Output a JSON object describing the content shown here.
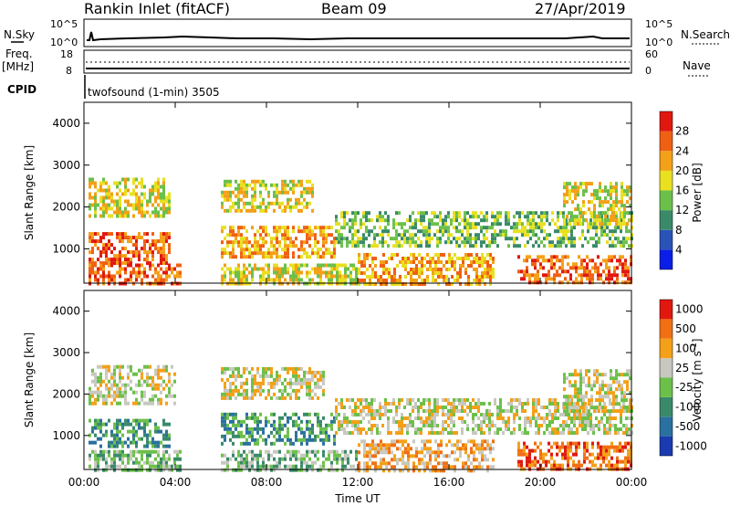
{
  "header": {
    "title": "Rankin Inlet (fitACF)",
    "beam": "Beam 09",
    "date": "27/Apr/2019"
  },
  "status_panels": {
    "nsky_label": "N.Sky",
    "nsearch_label": "N.Search",
    "nsky_ticks": [
      "10^5",
      "10^0"
    ],
    "nsearch_ticks": [
      "10^5",
      "10^0"
    ],
    "freq_label_top": "Freq.",
    "freq_label_unit": "[MHz]",
    "freq_ticks": [
      "18",
      "8"
    ],
    "nave_label": "Nave",
    "nave_ticks": [
      "60",
      "0"
    ],
    "cpid_label": "CPID",
    "cpid_text": "twofsound (1-min) 3505"
  },
  "chart_data": [
    {
      "type": "heatmap",
      "name": "power-panel",
      "ylabel": "Slant Range [km]",
      "ylim": [
        180,
        4500
      ],
      "yticks": [
        "1000",
        "2000",
        "3000",
        "4000"
      ],
      "xlim_hours": [
        0,
        24
      ],
      "colorbar": {
        "label": "Power [dB]",
        "ticks": [
          "4",
          "8",
          "12",
          "16",
          "20",
          "24",
          "28"
        ],
        "colors": [
          "#0a1ee6",
          "#2a53b8",
          "#3a8a6a",
          "#6cc04a",
          "#e8e020",
          "#f4a018",
          "#f06012",
          "#e01810"
        ]
      },
      "regions": [
        {
          "t0": 0.2,
          "t1": 3.8,
          "r0": 1800,
          "r1": 2700,
          "level": 4
        },
        {
          "t0": 0.2,
          "t1": 3.8,
          "r0": 700,
          "r1": 1400,
          "level": 6
        },
        {
          "t0": 0.2,
          "t1": 4.2,
          "r0": 180,
          "r1": 650,
          "level": 6
        },
        {
          "t0": 6.0,
          "t1": 10.0,
          "r0": 1900,
          "r1": 2650,
          "level": 4
        },
        {
          "t0": 6.0,
          "t1": 11.0,
          "r0": 800,
          "r1": 1550,
          "level": 5
        },
        {
          "t0": 6.0,
          "t1": 12.0,
          "r0": 180,
          "r1": 650,
          "level": 4
        },
        {
          "t0": 11.0,
          "t1": 24.0,
          "r0": 1100,
          "r1": 1900,
          "level": 3
        },
        {
          "t0": 12.0,
          "t1": 18.0,
          "r0": 180,
          "r1": 900,
          "level": 5
        },
        {
          "t0": 19.0,
          "t1": 24.0,
          "r0": 180,
          "r1": 850,
          "level": 6
        },
        {
          "t0": 21.0,
          "t1": 24.0,
          "r0": 1600,
          "r1": 2600,
          "level": 4
        }
      ]
    },
    {
      "type": "heatmap",
      "name": "velocity-panel",
      "xlabel": "Time UT",
      "ylabel": "Slant Range [km]",
      "ylim": [
        180,
        4500
      ],
      "yticks": [
        "1000",
        "2000",
        "3000",
        "4000"
      ],
      "xticks": [
        "00:00",
        "04:00",
        "08:00",
        "12:00",
        "16:00",
        "20:00",
        "00:00"
      ],
      "xlim_hours": [
        0,
        24
      ],
      "colorbar": {
        "label": "Velocity [m s",
        "label_sup": "-1",
        "label_end": "]",
        "ticks": [
          "1000",
          "500",
          "100",
          "25",
          "-25",
          "-100",
          "-500",
          "-1000"
        ],
        "colors": [
          "#1a3ab0",
          "#2a70a0",
          "#3a8a6a",
          "#6cc04a",
          "#c8c8c0",
          "#f4a018",
          "#f07012",
          "#e01810"
        ]
      },
      "regions": [
        {
          "t0": 0.2,
          "t1": 4.0,
          "r0": 1800,
          "r1": 2700,
          "level": 4
        },
        {
          "t0": 0.2,
          "t1": 3.8,
          "r0": 700,
          "r1": 1400,
          "level": 2
        },
        {
          "t0": 0.2,
          "t1": 4.2,
          "r0": 180,
          "r1": 650,
          "level": 3
        },
        {
          "t0": 6.0,
          "t1": 10.5,
          "r0": 1900,
          "r1": 2650,
          "level": 4
        },
        {
          "t0": 6.0,
          "t1": 11.0,
          "r0": 800,
          "r1": 1550,
          "level": 2
        },
        {
          "t0": 6.0,
          "t1": 12.0,
          "r0": 180,
          "r1": 650,
          "level": 3
        },
        {
          "t0": 11.0,
          "t1": 24.0,
          "r0": 1100,
          "r1": 1900,
          "level": 4
        },
        {
          "t0": 12.0,
          "t1": 18.0,
          "r0": 180,
          "r1": 900,
          "level": 5
        },
        {
          "t0": 19.0,
          "t1": 24.0,
          "r0": 180,
          "r1": 850,
          "level": 6
        },
        {
          "t0": 21.0,
          "t1": 24.0,
          "r0": 1600,
          "r1": 2600,
          "level": 4
        }
      ]
    }
  ]
}
